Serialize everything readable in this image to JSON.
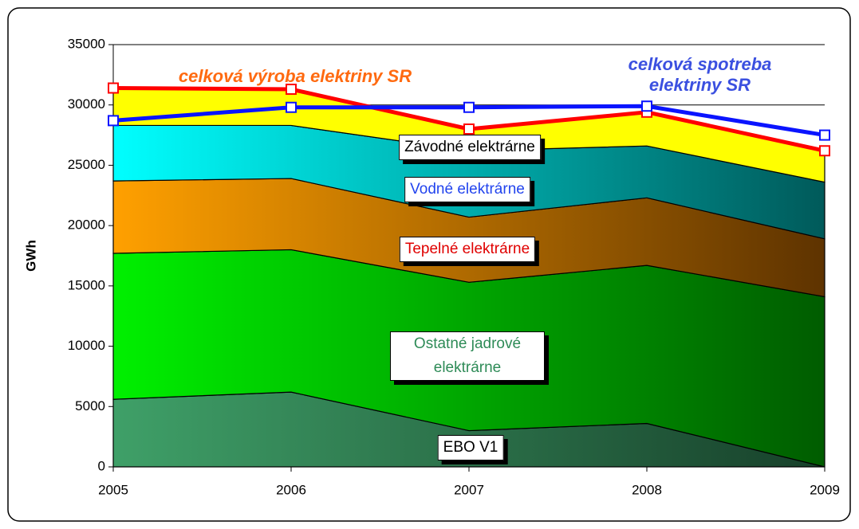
{
  "chart_data": {
    "type": "stacked_area",
    "x": [
      2005,
      2006,
      2007,
      2008,
      2009
    ],
    "xlim": [
      2005,
      2009
    ],
    "xticks": [
      2005,
      2006,
      2007,
      2008,
      2009
    ],
    "ylim": [
      0,
      35000
    ],
    "yticks": [
      0,
      5000,
      10000,
      15000,
      20000,
      25000,
      30000,
      35000
    ],
    "y_label": "GWh",
    "grid": true,
    "series": [
      {
        "name": "EBO V1",
        "color": "#3fa068",
        "color_end": "#17402a",
        "values": [
          5600,
          6200,
          3000,
          3600,
          0
        ]
      },
      {
        "name": "Ostatné jadrové elektrárne",
        "color": "#00f000",
        "color_end": "#005c00",
        "values": [
          12100,
          11800,
          12300,
          13100,
          14100
        ]
      },
      {
        "name": "Tepelné elektrárne",
        "color": "#ffa000",
        "color_end": "#5e3300",
        "values": [
          6000,
          5900,
          5400,
          5600,
          4800
        ]
      },
      {
        "name": "Vodné elektrárne",
        "color": "#00ffff",
        "color_end": "#005a5a",
        "values": [
          4600,
          4400,
          5500,
          4300,
          4700
        ]
      },
      {
        "name": "Závodné elektrárne",
        "color": "#ffff00",
        "color_end": "#ffff00",
        "values": [
          3100,
          3000,
          1800,
          2800,
          2600
        ]
      }
    ],
    "lines": [
      {
        "name": "celková výroba elektriny SR",
        "color": "#ff0000",
        "label_color": "#ff6a10",
        "values": [
          31400,
          31300,
          28000,
          29400,
          26200
        ]
      },
      {
        "name": "celková spotreba elektriny SR",
        "color": "#0a14ff",
        "label_color": "#3b50e0",
        "values": [
          28700,
          29800,
          29800,
          29900,
          27500
        ]
      }
    ]
  }
}
